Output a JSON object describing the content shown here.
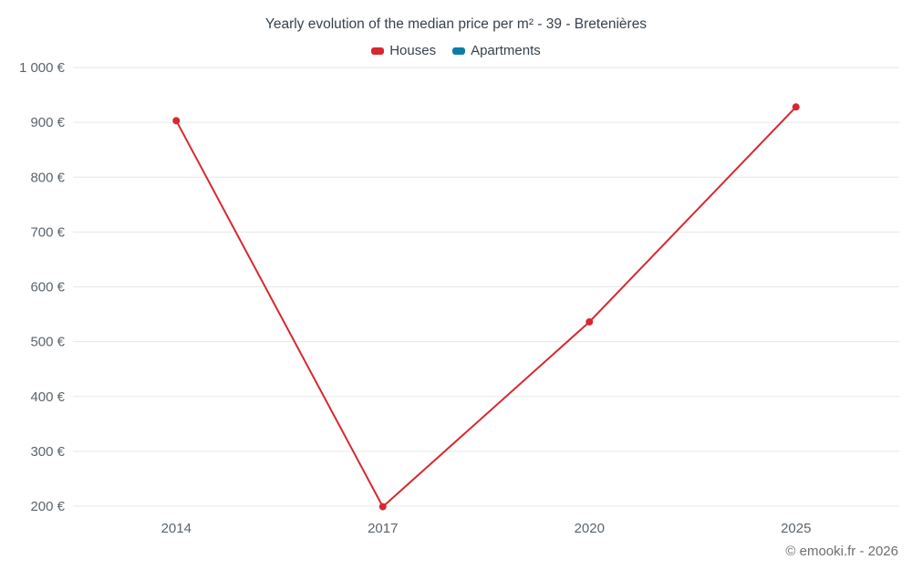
{
  "chart": {
    "title": "Yearly evolution of the median price per m² - 39 - Bretenières",
    "footer": "© emooki.fr - 2026"
  },
  "chart_data": {
    "type": "line",
    "title": "Yearly evolution of the median price per m² - 39 - Bretenières",
    "categories": [
      "2014",
      "2017",
      "2020",
      "2025"
    ],
    "series": [
      {
        "name": "Houses",
        "color": "#d7282f",
        "values": [
          903,
          199,
          536,
          928
        ]
      },
      {
        "name": "Apartments",
        "color": "#0c7da8",
        "values": []
      }
    ],
    "xlabel": "",
    "ylabel": "",
    "ylim": [
      200,
      1000
    ],
    "ytick_values": [
      200,
      300,
      400,
      500,
      600,
      700,
      800,
      900,
      1000
    ],
    "ytick_labels": [
      "200 €",
      "300 €",
      "400 €",
      "500 €",
      "600 €",
      "700 €",
      "800 €",
      "900 €",
      "1 000 €"
    ],
    "grid": "horizontal",
    "legend_position": "top"
  },
  "colors": {
    "grid": "#e7e7e7",
    "tick_text": "#5b646b",
    "title_text": "#37424c",
    "footer_text": "#6e6e6e",
    "background": "#ffffff"
  }
}
